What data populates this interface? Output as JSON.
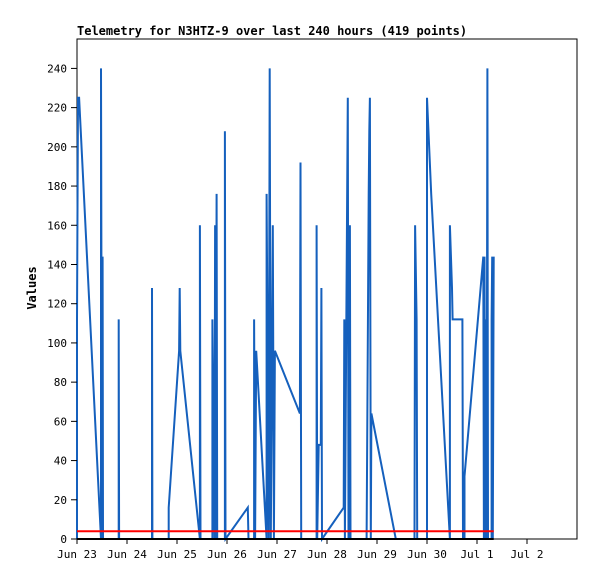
{
  "chart_data": {
    "type": "line",
    "title": "Telemetry for N3HTZ-9 over last 240 hours (419 points)",
    "ylabel": "Values",
    "xlabel": "",
    "x_unit": "hours since Jun 23 00:00",
    "ylim": [
      0,
      255
    ],
    "xlim": [
      0,
      240
    ],
    "grid": false,
    "y_ticks": [
      0,
      20,
      40,
      60,
      80,
      100,
      120,
      140,
      160,
      180,
      200,
      220,
      240
    ],
    "x_ticks": [
      {
        "label": "Jun 23",
        "x": 0
      },
      {
        "label": "Jun 24",
        "x": 24
      },
      {
        "label": "Jun 25",
        "x": 48
      },
      {
        "label": "Jun 26",
        "x": 72
      },
      {
        "label": "Jun 27",
        "x": 96
      },
      {
        "label": "Jun 28",
        "x": 120
      },
      {
        "label": "Jun 29",
        "x": 144
      },
      {
        "label": "Jun 30",
        "x": 168
      },
      {
        "label": "Jul 1",
        "x": 192
      },
      {
        "label": "Jul 2",
        "x": 216
      }
    ],
    "series": [
      {
        "name": "",
        "color": "#1560bd",
        "points": [
          [
            0,
            0
          ],
          [
            0,
            112
          ],
          [
            0.5,
            225
          ],
          [
            1,
            225
          ],
          [
            11.5,
            0
          ],
          [
            11.5,
            240
          ],
          [
            12,
            0
          ],
          [
            12.3,
            144
          ],
          [
            12.5,
            0
          ],
          [
            20,
            0
          ],
          [
            20,
            112
          ],
          [
            20.2,
            0
          ],
          [
            36,
            0
          ],
          [
            36,
            128
          ],
          [
            36.2,
            0
          ],
          [
            44,
            0
          ],
          [
            44,
            16
          ],
          [
            49,
            96
          ],
          [
            49.3,
            128
          ],
          [
            49.6,
            96
          ],
          [
            59,
            0
          ],
          [
            59,
            160
          ],
          [
            59.3,
            0
          ],
          [
            65,
            0
          ],
          [
            65,
            112
          ],
          [
            66,
            0
          ],
          [
            66.3,
            160
          ],
          [
            66.6,
            0
          ],
          [
            67,
            176
          ],
          [
            67.3,
            0
          ],
          [
            71,
            0
          ],
          [
            71,
            208
          ],
          [
            71.3,
            0
          ],
          [
            82,
            16
          ],
          [
            82.3,
            0
          ],
          [
            85,
            0
          ],
          [
            85,
            112
          ],
          [
            85.5,
            0
          ],
          [
            86,
            96
          ],
          [
            91,
            0
          ],
          [
            91,
            176
          ],
          [
            92,
            0
          ],
          [
            92.5,
            240
          ],
          [
            93,
            0
          ],
          [
            94,
            160
          ],
          [
            94.5,
            0
          ],
          [
            95,
            96
          ],
          [
            107,
            64
          ],
          [
            107.3,
            192
          ],
          [
            107.6,
            0
          ],
          [
            115,
            0
          ],
          [
            115,
            160
          ],
          [
            115.3,
            0
          ],
          [
            116,
            48
          ],
          [
            117,
            48
          ],
          [
            117.3,
            128
          ],
          [
            117.6,
            0
          ],
          [
            128,
            16
          ],
          [
            128.3,
            112
          ],
          [
            128.6,
            0
          ],
          [
            130,
            225
          ],
          [
            130.3,
            0
          ],
          [
            131,
            160
          ],
          [
            131.3,
            0
          ],
          [
            139,
            0
          ],
          [
            140,
            176
          ],
          [
            140.3,
            208
          ],
          [
            140.6,
            225
          ],
          [
            141,
            0
          ],
          [
            141.3,
            64
          ],
          [
            153,
            0
          ],
          [
            162,
            0
          ],
          [
            162.3,
            160
          ],
          [
            163,
            112
          ],
          [
            163.3,
            0
          ],
          [
            168,
            0
          ],
          [
            168,
            225
          ],
          [
            170,
            176
          ],
          [
            179,
            0
          ],
          [
            179,
            160
          ],
          [
            180,
            128
          ],
          [
            180.3,
            112
          ],
          [
            185,
            112
          ],
          [
            185.3,
            0
          ],
          [
            186,
            0
          ],
          [
            186,
            32
          ],
          [
            195,
            144
          ],
          [
            195.3,
            0
          ],
          [
            195.6,
            144
          ],
          [
            196,
            0
          ],
          [
            196.3,
            112
          ],
          [
            196.6,
            0
          ],
          [
            197,
            240
          ],
          [
            197.3,
            0
          ],
          [
            199,
            0
          ],
          [
            199,
            112
          ],
          [
            199.3,
            144
          ],
          [
            199.6,
            0
          ],
          [
            200,
            144
          ]
        ]
      },
      {
        "name": "",
        "color": "#ff0000",
        "points": [
          [
            0,
            4
          ],
          [
            200,
            4
          ]
        ]
      },
      {
        "name": "",
        "color": "#000000",
        "points": [
          [
            0,
            0
          ],
          [
            200,
            0
          ]
        ]
      }
    ]
  }
}
